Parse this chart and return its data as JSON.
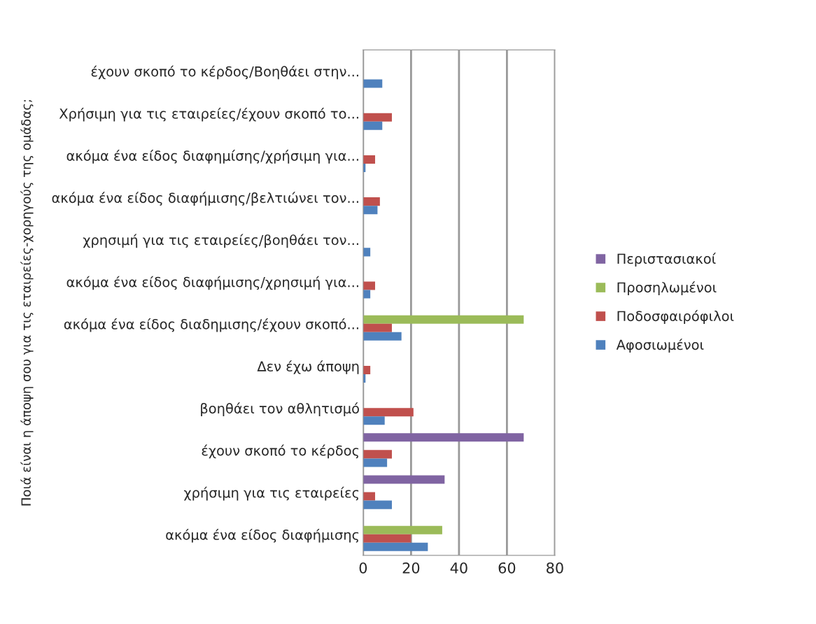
{
  "chart_data": {
    "type": "bar",
    "orientation": "horizontal",
    "ylabel": "Ποιά είναι η άποψη σου για τις εταιρείες-χορηγούς της ομάδας;",
    "categories": [
      "έχουν σκοπό το κέρδος/Βοηθάει στην...",
      "Χρήσιμη για τις εταιρείες/έχουν σκοπό το...",
      "ακόμα ένα είδος διαφημίσης/χρήσιμη για...",
      "ακόμα ένα είδος διαφήμισης/βελτιώνει τον...",
      "χρησιμή για τις εταιρείες/βοηθάει τον...",
      "ακόμα ένα είδος διαφήμισης/χρησιμή για...",
      "ακόμα ένα είδος διαδημισης/έχουν σκοπό...",
      "Δεν έχω άποψη",
      "βοηθάει τον αθλητισμό",
      "έχουν σκοπό το κέρδος",
      "χρήσιμη για τις εταιρείες",
      "ακόμα ένα είδος διαφήμισης"
    ],
    "series": [
      {
        "name": "Περιστασιακοί",
        "color": "#8064a2",
        "values": [
          0,
          0,
          0,
          0,
          0,
          0,
          0,
          0,
          0,
          67,
          34,
          0
        ]
      },
      {
        "name": "Προσηλωμένοι",
        "color": "#9bbb59",
        "values": [
          0,
          0,
          0,
          0,
          0,
          0,
          67,
          0,
          0,
          0,
          0,
          33
        ]
      },
      {
        "name": "Ποδοσφαιρόφιλοι",
        "color": "#c0504d",
        "values": [
          0,
          12,
          5,
          7,
          0,
          5,
          12,
          3,
          21,
          12,
          5,
          20
        ]
      },
      {
        "name": "Αφοσιωμένοι",
        "color": "#4f81bd",
        "values": [
          8,
          8,
          1,
          6,
          3,
          3,
          16,
          1,
          9,
          10,
          12,
          27
        ]
      }
    ],
    "xlim": [
      0,
      80
    ],
    "xticks": [
      0,
      20,
      40,
      60,
      80
    ],
    "grid": "x",
    "legend": "right"
  }
}
